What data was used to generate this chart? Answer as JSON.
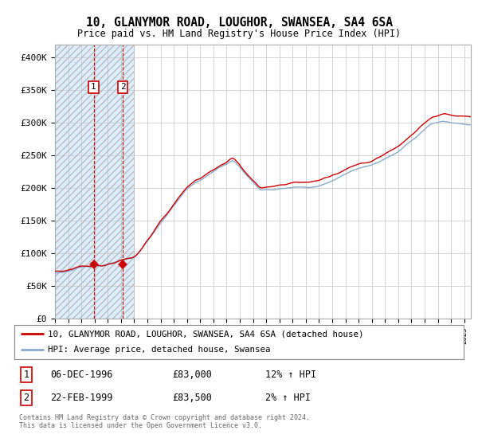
{
  "title": "10, GLANYMOR ROAD, LOUGHOR, SWANSEA, SA4 6SA",
  "subtitle": "Price paid vs. HM Land Registry's House Price Index (HPI)",
  "ylim": [
    0,
    420000
  ],
  "yticks": [
    0,
    50000,
    100000,
    150000,
    200000,
    250000,
    300000,
    350000,
    400000
  ],
  "ytick_labels": [
    "£0",
    "£50K",
    "£100K",
    "£150K",
    "£200K",
    "£250K",
    "£300K",
    "£350K",
    "£400K"
  ],
  "price_paid_color": "#cc0000",
  "hpi_color": "#88aacc",
  "annotation_box_color": "#cc0000",
  "shaded_region_color": "#ddeeff",
  "hatch_color": "#cccccc",
  "dashed_line_color": "#cc0000",
  "transactions": [
    {
      "date_x": 1996.93,
      "price": 83000,
      "label": "1"
    },
    {
      "date_x": 1999.13,
      "price": 83500,
      "label": "2"
    }
  ],
  "transaction_table": [
    {
      "num": "1",
      "date": "06-DEC-1996",
      "price": "£83,000",
      "hpi": "12% ↑ HPI"
    },
    {
      "num": "2",
      "date": "22-FEB-1999",
      "price": "£83,500",
      "hpi": "2% ↑ HPI"
    }
  ],
  "legend_line1": "10, GLANYMOR ROAD, LOUGHOR, SWANSEA, SA4 6SA (detached house)",
  "legend_line2": "HPI: Average price, detached house, Swansea",
  "footer": "Contains HM Land Registry data © Crown copyright and database right 2024.\nThis data is licensed under the Open Government Licence v3.0.",
  "background_color": "#ffffff",
  "grid_color": "#cccccc",
  "xmin": 1994,
  "xmax": 2025.5
}
